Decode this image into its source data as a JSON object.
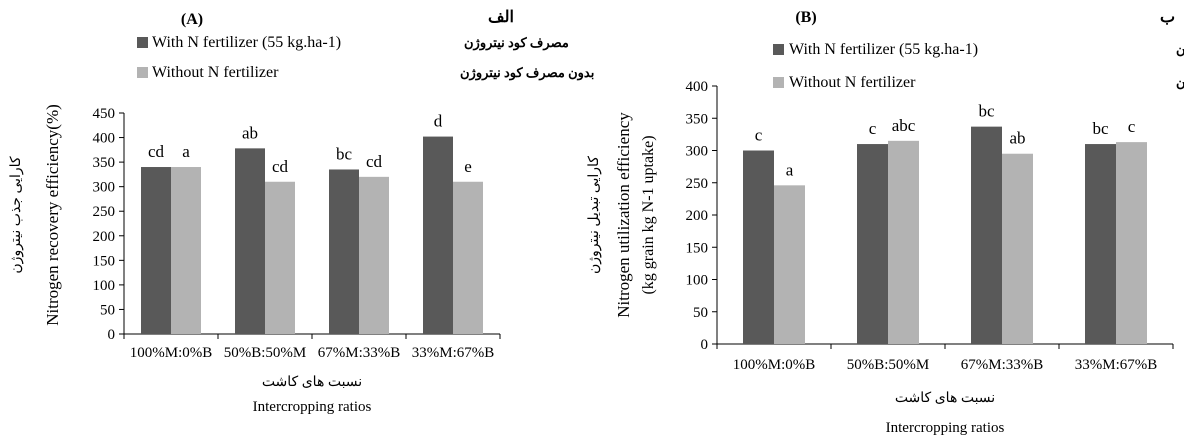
{
  "colors": {
    "with_n": "#595959",
    "without_n": "#b3b3b3",
    "axis": "#000000"
  },
  "chart_data": [
    {
      "type": "bar",
      "panel_label": "(A)",
      "panel_label_fa": "الف",
      "categories": [
        "100%M:0%B",
        "50%B:50%M",
        "67%M:33%B",
        "33%M:67%B"
      ],
      "series": [
        {
          "name": "With N fertilizer  (55 kg.ha-1)",
          "name_fa": "مصرف کود نیتروژن",
          "values": [
            340,
            378,
            335,
            402
          ],
          "letters": [
            "cd",
            "ab",
            "bc",
            "d"
          ]
        },
        {
          "name": "Without N fertilizer",
          "name_fa": "بدون مصرف کود نیتروژن",
          "values": [
            340,
            310,
            320,
            310
          ],
          "letters": [
            "a",
            "cd",
            "cd",
            "e"
          ]
        }
      ],
      "ylabel": "Nitrogen recovery efficiency(%)",
      "ylabel_fa": "کارایی جذب نیتروژن",
      "ylabel_sub": "",
      "xlabel": "Intercropping ratios",
      "xlabel_fa": "نسبت های کاشت",
      "ylim": [
        0,
        450
      ],
      "yticks": [
        0,
        50,
        100,
        150,
        200,
        250,
        300,
        350,
        400,
        450
      ],
      "grid": false,
      "legend": "top"
    },
    {
      "type": "bar",
      "panel_label": "(B)",
      "panel_label_fa": "ب",
      "categories": [
        "100%M:0%B",
        "50%B:50%M",
        "67%M:33%B",
        "33%M:67%B"
      ],
      "series": [
        {
          "name": "With N fertilizer  (55 kg.ha-1)",
          "name_fa": "مصرف کود نیتروژن",
          "values": [
            300,
            310,
            337,
            310
          ],
          "letters": [
            "c",
            "c",
            "bc",
            "bc"
          ]
        },
        {
          "name": "Without N fertilizer",
          "name_fa": "بدون مصرف کود نیتروژن",
          "values": [
            246,
            315,
            295,
            313
          ],
          "letters": [
            "a",
            "abc",
            "ab",
            "c"
          ]
        }
      ],
      "ylabel": "Nitrogen utilization efficiency",
      "ylabel_fa": "کارایی تبدیل نیتروژن",
      "ylabel_sub": "(kg grain kg N-1 uptake)",
      "xlabel": "Intercropping ratios",
      "xlabel_fa": "نسبت های کاشت",
      "ylim": [
        0,
        400
      ],
      "yticks": [
        0,
        50,
        100,
        150,
        200,
        250,
        300,
        350,
        400
      ],
      "grid": false,
      "legend": "top"
    }
  ]
}
